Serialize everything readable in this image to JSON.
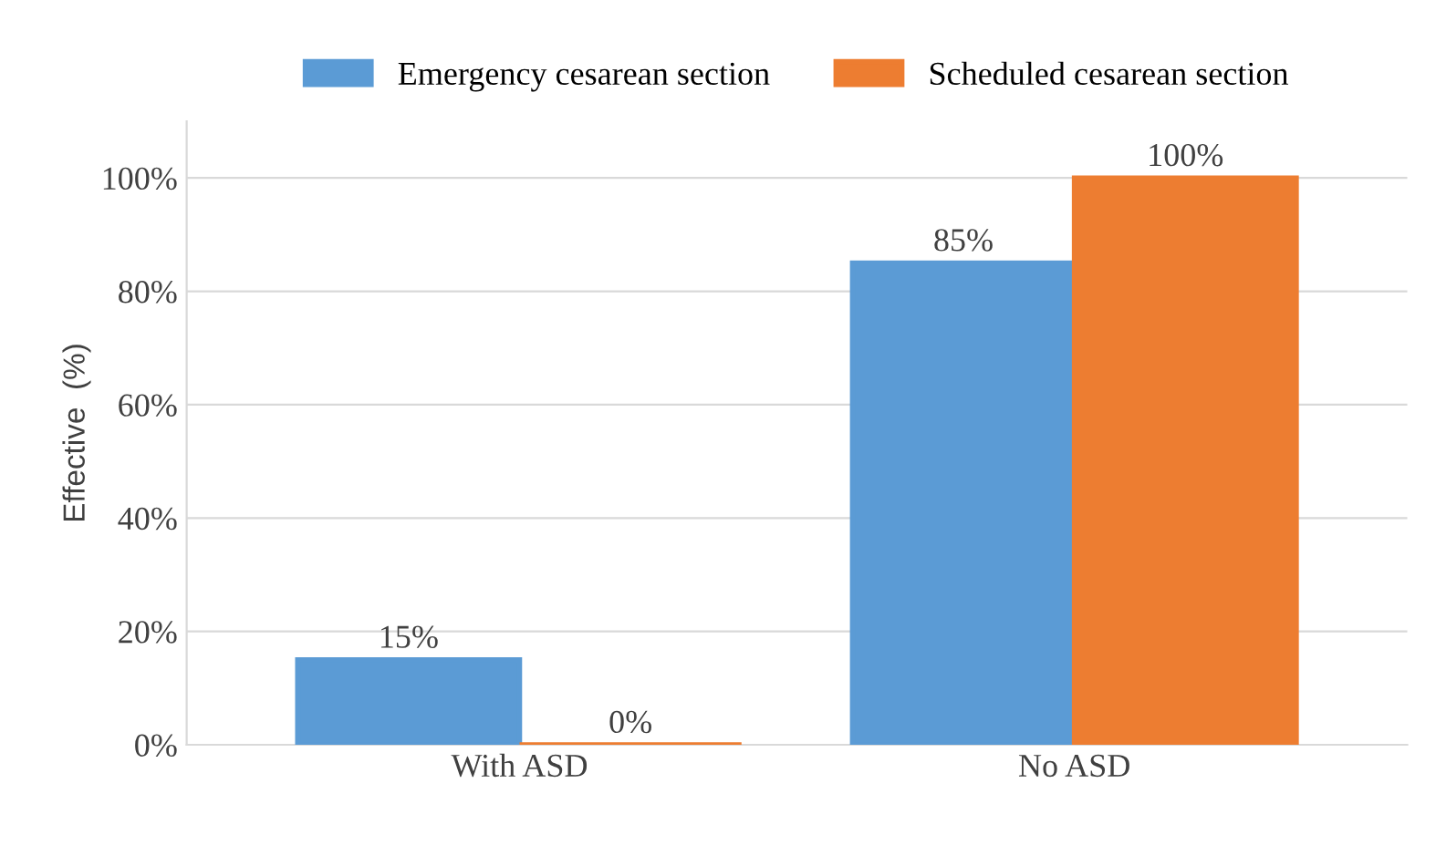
{
  "chart_data": {
    "type": "bar",
    "ylabel": "Effective  (%)",
    "categories": [
      "With ASD",
      "No ASD"
    ],
    "series": [
      {
        "name": "Emergency cesarean section",
        "color": "#5b9bd5",
        "values": [
          15,
          85
        ],
        "value_labels": [
          "15%",
          "85%"
        ]
      },
      {
        "name": "Scheduled cesarean section",
        "color": "#ed7d31",
        "values": [
          0,
          100
        ],
        "value_labels": [
          "0%",
          "100%"
        ]
      }
    ],
    "ylim": [
      0,
      110
    ],
    "yticks": [
      {
        "value": 0,
        "label": "0%"
      },
      {
        "value": 20,
        "label": "20%"
      },
      {
        "value": 40,
        "label": "40%"
      },
      {
        "value": 60,
        "label": "60%"
      },
      {
        "value": 80,
        "label": "80%"
      },
      {
        "value": 100,
        "label": "100%"
      }
    ],
    "grid": "y",
    "legend": "top"
  }
}
